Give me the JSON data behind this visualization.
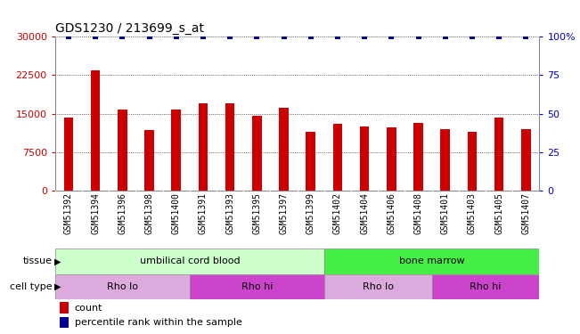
{
  "title": "GDS1230 / 213699_s_at",
  "samples": [
    "GSM51392",
    "GSM51394",
    "GSM51396",
    "GSM51398",
    "GSM51400",
    "GSM51391",
    "GSM51393",
    "GSM51395",
    "GSM51397",
    "GSM51399",
    "GSM51402",
    "GSM51404",
    "GSM51406",
    "GSM51408",
    "GSM51401",
    "GSM51403",
    "GSM51405",
    "GSM51407"
  ],
  "counts": [
    14200,
    23500,
    15700,
    11800,
    15800,
    17000,
    17000,
    14500,
    16200,
    11500,
    13000,
    12500,
    12300,
    13200,
    12000,
    11500,
    14200,
    12000
  ],
  "bar_color": "#cc0000",
  "dot_color": "#000099",
  "ylim_left": [
    0,
    30000
  ],
  "ylim_right": [
    0,
    100
  ],
  "yticks_left": [
    0,
    7500,
    15000,
    22500,
    30000
  ],
  "yticks_right": [
    0,
    25,
    50,
    75,
    100
  ],
  "tissue_groups": [
    {
      "label": "umbilical cord blood",
      "start": 0,
      "end": 10,
      "color": "#ccffcc"
    },
    {
      "label": "bone marrow",
      "start": 10,
      "end": 18,
      "color": "#44ee44"
    }
  ],
  "celltype_groups": [
    {
      "label": "Rho lo",
      "start": 0,
      "end": 5,
      "color": "#ddaadd"
    },
    {
      "label": "Rho hi",
      "start": 5,
      "end": 10,
      "color": "#cc44cc"
    },
    {
      "label": "Rho lo",
      "start": 10,
      "end": 14,
      "color": "#ddaadd"
    },
    {
      "label": "Rho hi",
      "start": 14,
      "end": 18,
      "color": "#cc44cc"
    }
  ],
  "tissue_label": "tissue",
  "celltype_label": "cell type",
  "legend_count_label": "count",
  "legend_pct_label": "percentile rank within the sample",
  "bg_color": "#ffffff",
  "tick_area_color": "#c8c8c8"
}
